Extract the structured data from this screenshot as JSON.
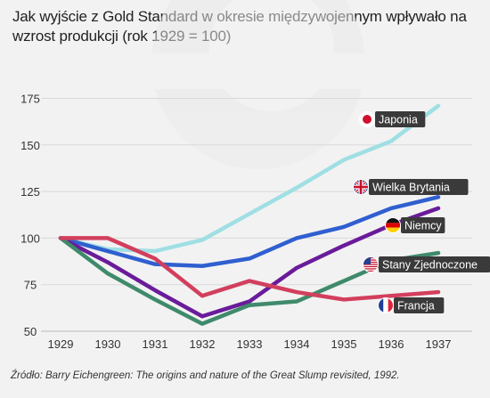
{
  "chart_data": {
    "type": "line",
    "title": "Jak wyjście z Gold Standard w okresie międzywojennym wpływało na wzrost produkcji (rok 1929 = 100)",
    "xlabel": "",
    "ylabel": "",
    "x": [
      1929,
      1930,
      1931,
      1932,
      1933,
      1934,
      1935,
      1936,
      1937
    ],
    "xlim": [
      1929,
      1937
    ],
    "ylim": [
      50,
      180
    ],
    "yticks": [
      50,
      75,
      100,
      125,
      150,
      175
    ],
    "grid": true,
    "legend": "inline-labels-right",
    "series": [
      {
        "name": "Japonia",
        "color": "#9fdfe3",
        "flag": "japan-flag-icon",
        "values": [
          100,
          94,
          93,
          99,
          113,
          127,
          142,
          152,
          171
        ]
      },
      {
        "name": "Wielka Brytania",
        "color": "#2f5fd0",
        "flag": "uk-flag-icon",
        "values": [
          100,
          93,
          86,
          85,
          89,
          100,
          106,
          116,
          122
        ]
      },
      {
        "name": "Niemcy",
        "color": "#6a1b9a",
        "flag": "germany-flag-icon",
        "values": [
          100,
          87,
          72,
          58,
          66,
          84,
          96,
          107,
          116
        ]
      },
      {
        "name": "Stany Zjednoczone",
        "color": "#3f8a6b",
        "flag": "usa-flag-icon",
        "values": [
          100,
          81,
          67,
          54,
          64,
          66,
          77,
          88,
          92
        ]
      },
      {
        "name": "Francja",
        "color": "#d23f5d",
        "flag": "france-flag-icon",
        "values": [
          100,
          100,
          89,
          69,
          77,
          71,
          67,
          69,
          71
        ]
      }
    ]
  },
  "source": "Źródło: Barry Eichengreen: The origins and nature of the Great Slump revisited, 1992."
}
